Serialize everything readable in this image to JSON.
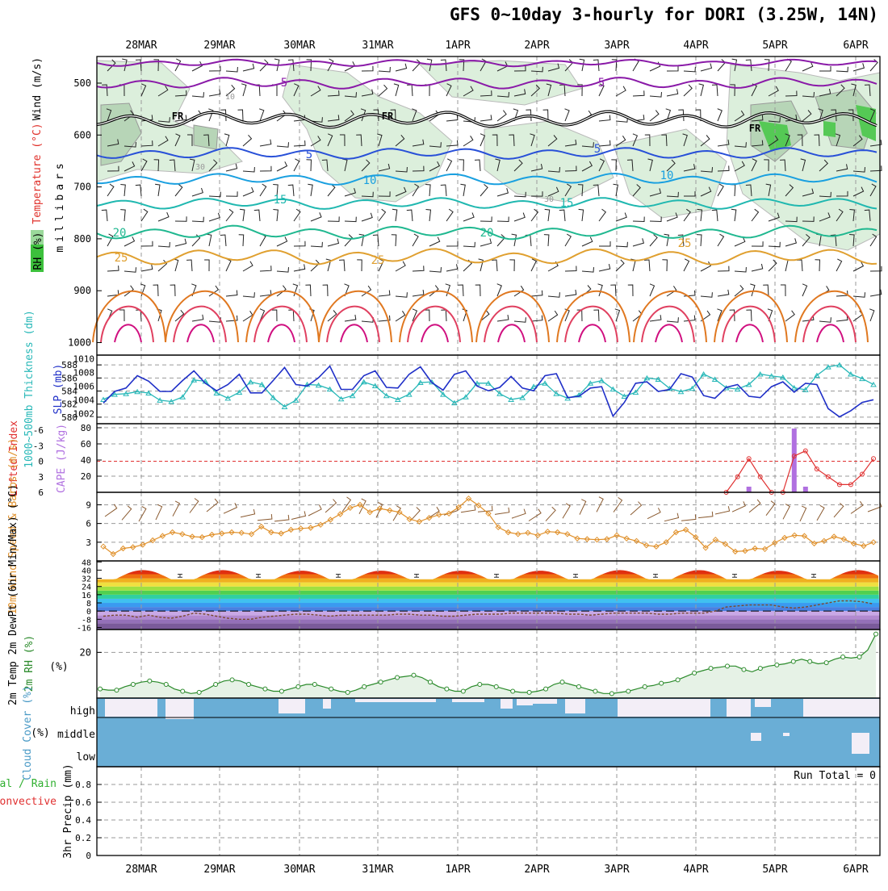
{
  "title": "GFS 0~10day 3-hourly for DORI (3.25W, 14N)",
  "dates": [
    "28MAR",
    "29MAR",
    "30MAR",
    "31MAR",
    "1APR",
    "2APR",
    "3APR",
    "4APR",
    "5APR",
    "6APR"
  ],
  "colors": {
    "wind_label": "#000000",
    "temp_label": "#e0302a",
    "rh_label": "#2a9a2a",
    "thickness": "#28b8b8",
    "slp": "#2030c8",
    "lifted": "#e03030",
    "cape": "#b070e0",
    "wind10m": "#e0902a",
    "rh2m": "#2a8a2a",
    "cloud": "#6aaed6",
    "cloud_clear": "#f3eef7",
    "precip_total": "#30b030",
    "precip_conv": "#e03030"
  },
  "chart_data": [
    {
      "type": "heatmap",
      "name": "upper-air",
      "ylabel": "millibars",
      "yticks": [
        500,
        600,
        700,
        800,
        900,
        1000
      ],
      "legend_labels": {
        "wind": "Wind (m/s)",
        "temperature": "Temperature (°C)",
        "rh": "RH (%)"
      },
      "contour_labels": [
        "5",
        "5",
        "FR",
        "FR",
        "FR",
        "5",
        "5",
        "10",
        "10",
        "15",
        "15",
        "20",
        "20",
        "25",
        "25",
        "25",
        "10",
        "30",
        "30"
      ]
    },
    {
      "type": "line",
      "name": "thickness-slp",
      "left_axis": {
        "label": "1000~500mb Thickness (dm)",
        "ticks": [
          580,
          582,
          584,
          586,
          588
        ],
        "range": [
          579,
          589.5
        ]
      },
      "right_axis": {
        "label": "SLP (mb)",
        "ticks": [
          1002,
          1004,
          1006,
          1008,
          1010
        ],
        "range": [
          1000.5,
          1010.5
        ]
      },
      "series": [
        {
          "name": "",
          "axis": "left",
          "values": [
            582.7,
            583.5,
            583.6,
            583.9,
            583.7,
            582.6,
            582.4,
            583.1,
            585.7,
            585.5,
            583.7,
            582.9,
            583.8,
            585.4,
            585.0,
            583.0,
            581.6,
            582.6,
            585.0,
            584.9,
            584.3,
            582.8,
            583.3,
            585.4,
            584.8,
            583.3,
            582.7,
            583.5,
            585.3,
            585.4,
            583.5,
            582.2,
            583.1,
            585.2,
            585.2,
            583.6,
            582.7,
            583.0,
            584.7,
            585.2,
            583.6,
            582.9,
            583.4,
            585.2,
            585.6,
            584.3,
            583.2,
            583.8,
            586.0,
            585.8,
            584.4,
            583.9,
            584.4,
            586.6,
            585.8,
            584.5,
            584.3,
            585.0,
            586.6,
            586.3,
            586.1,
            584.5,
            584.2,
            586.4,
            587.7,
            588.0,
            586.6,
            585.9,
            585.0
          ]
        },
        {
          "name": "",
          "axis": "right",
          "values": [
            1003.5,
            1005.2,
            1005.7,
            1007.5,
            1006.7,
            1005.2,
            1005.2,
            1006.8,
            1008.2,
            1006.4,
            1005.3,
            1006.2,
            1007.7,
            1005.0,
            1005.0,
            1006.8,
            1008.7,
            1006.2,
            1006.0,
            1007.2,
            1008.9,
            1005.5,
            1005.5,
            1007.5,
            1008.2,
            1005.8,
            1005.7,
            1007.7,
            1008.8,
            1006.5,
            1005.4,
            1007.7,
            1008.2,
            1006.0,
            1005.3,
            1005.8,
            1007.4,
            1005.7,
            1005.3,
            1007.5,
            1007.8,
            1004.3,
            1004.5,
            1005.7,
            1005.9,
            1001.6,
            1003.6,
            1006.4,
            1006.6,
            1005.2,
            1005.5,
            1007.8,
            1007.3,
            1004.6,
            1004.2,
            1005.8,
            1006.2,
            1004.5,
            1004.3,
            1005.9,
            1006.6,
            1005.1,
            1006.4,
            1006.2,
            1002.7,
            1001.5,
            1002.4,
            1003.6,
            1004.0
          ]
        }
      ]
    },
    {
      "type": "bar",
      "name": "cape-lifted-index",
      "left_axis": {
        "label": "Lifted Index",
        "ticks": [
          -6,
          -3,
          0,
          3,
          6
        ]
      },
      "right_axis": {
        "label": "CAPE (J/kg)",
        "ticks": [
          20,
          40,
          60,
          80
        ]
      },
      "cape_bars": [
        {
          "index": 57,
          "value": 7
        },
        {
          "index": 61,
          "value": 79
        },
        {
          "index": 62,
          "value": 7
        }
      ],
      "lifted_index": [
        {
          "index": 55,
          "value": 6
        },
        {
          "index": 56,
          "value": 3
        },
        {
          "index": 57,
          "value": -0.5
        },
        {
          "index": 58,
          "value": 3
        },
        {
          "index": 59,
          "value": 6
        },
        {
          "index": 60,
          "value": 6
        },
        {
          "index": 61,
          "value": -1
        },
        {
          "index": 62,
          "value": -2
        },
        {
          "index": 63,
          "value": 1.5
        },
        {
          "index": 64,
          "value": 3
        },
        {
          "index": 65,
          "value": 4.5
        },
        {
          "index": 66,
          "value": 4.5
        },
        {
          "index": 67,
          "value": 2.5
        },
        {
          "index": 68,
          "value": -0.5
        }
      ]
    },
    {
      "type": "line",
      "name": "wind-10m",
      "ylabel": "10m Wind Speed & Barbs (m/s)",
      "yticks": [
        3,
        6,
        9
      ],
      "range": [
        0,
        11
      ],
      "series": [
        {
          "name": "",
          "values": [
            2.3,
            1.1,
            2.0,
            2.2,
            2.6,
            3.3,
            4.0,
            4.6,
            4.3,
            3.9,
            3.8,
            4.2,
            4.4,
            4.6,
            4.5,
            4.3,
            5.5,
            4.6,
            4.4,
            5.0,
            5.2,
            5.3,
            5.8,
            6.6,
            7.5,
            8.5,
            9.0,
            7.8,
            8.4,
            8.1,
            7.8,
            6.7,
            6.3,
            6.9,
            7.4,
            7.6,
            8.6,
            10.0,
            8.9,
            7.6,
            5.4,
            4.6,
            4.3,
            4.5,
            4.1,
            4.7,
            4.6,
            4.3,
            3.6,
            3.5,
            3.4,
            3.5,
            4.1,
            3.6,
            3.2,
            2.5,
            2.3,
            3.0,
            4.6,
            5.0,
            3.8,
            2.1,
            3.4,
            2.7,
            1.5,
            1.6,
            2.0,
            1.9,
            2.9,
            3.7,
            4.1,
            4.0,
            2.8,
            3.2,
            3.9,
            3.5,
            2.8,
            2.4,
            3.0
          ]
        }
      ]
    },
    {
      "type": "area",
      "name": "temperature-2m",
      "ylabel": "2m Temp 2m DewPt (6hr Min/Max) (°C)",
      "yticks": [
        -16,
        -8,
        0,
        8,
        16,
        24,
        32,
        40,
        48
      ],
      "range": [
        -18,
        49
      ],
      "series": [
        {
          "name": "",
          "values": [
            40,
            40,
            39.5,
            39.5,
            39.5,
            39.5,
            40,
            40,
            39.5,
            40
          ]
        },
        {
          "name": "",
          "values": [
            -5,
            -4,
            -4,
            -6,
            -4,
            -6,
            -7,
            -5,
            -2,
            -3,
            -5,
            -7,
            -8,
            -8,
            -6,
            -5,
            -4,
            -3,
            -3,
            -4,
            -5,
            -4,
            -4,
            -4,
            -4,
            -4,
            -3,
            -3,
            -4,
            -4,
            -5,
            -5,
            -4,
            -3,
            -3,
            -3,
            -2,
            -2,
            -2,
            -2,
            -2,
            -3,
            -3,
            -4,
            -3,
            -2,
            -2,
            -2,
            -2,
            -3,
            -3,
            -2,
            -2,
            -2,
            0,
            4,
            5,
            6,
            6,
            6,
            4,
            3,
            4,
            6,
            8,
            10,
            10,
            9,
            7
          ]
        }
      ]
    },
    {
      "type": "line",
      "name": "rh-2m",
      "ylabel": "2m RH (%)",
      "yticks": [
        20
      ],
      "range": [
        0,
        30
      ],
      "series": [
        {
          "name": "",
          "values": [
            4,
            3.5,
            3.5,
            5,
            6,
            7,
            7.5,
            7,
            6,
            4,
            3,
            2,
            2.5,
            4,
            6,
            7.5,
            8,
            7.5,
            6,
            5,
            4,
            3,
            3,
            4,
            5,
            6,
            6,
            5,
            4,
            3,
            2.5,
            3.5,
            5,
            6,
            7,
            8,
            9,
            9.5,
            10,
            9,
            7,
            5,
            4,
            3,
            3,
            5,
            6,
            6,
            5,
            4,
            3,
            2.5,
            2.5,
            3,
            4,
            6,
            7,
            6,
            5,
            4,
            3,
            2,
            2,
            2.5,
            3,
            4,
            5,
            5.5,
            6.5,
            7,
            8,
            9.5,
            11,
            12,
            13,
            13.5,
            14,
            14,
            12.5,
            11.5,
            13,
            14,
            14.5,
            15,
            16,
            17,
            16,
            15,
            15.5,
            17,
            18,
            17.5,
            18,
            21,
            28
          ]
        }
      ]
    },
    {
      "type": "area",
      "name": "cloud-cover",
      "ylabel": "Cloud Cover (%)",
      "yticks": [
        "high",
        "middle",
        "low"
      ]
    },
    {
      "type": "bar",
      "name": "precip",
      "ylabel": "3hr Precip (mm)",
      "legend": [
        "Total / Rain",
        "Convective"
      ],
      "yticks": [
        0,
        0.2,
        0.4,
        0.6,
        0.8
      ],
      "range": [
        0,
        1
      ],
      "run_total": "Run Total = 0",
      "values": []
    }
  ]
}
